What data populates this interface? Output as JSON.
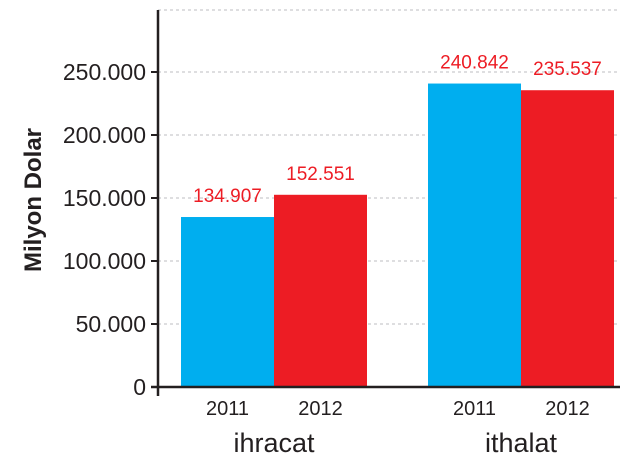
{
  "chart_data": {
    "type": "bar",
    "ylabel": "Milyon Dolar",
    "ylim": [
      0,
      250000
    ],
    "yticks": [
      0,
      50000,
      100000,
      150000,
      200000,
      250000
    ],
    "ytick_labels": [
      "0",
      "50.000",
      "100.000",
      "150.000",
      "200.000",
      "250.000"
    ],
    "grid": true,
    "groups": [
      {
        "name": "ihracat",
        "bars": [
          {
            "year": "2011",
            "value": 134907,
            "label": "134.907",
            "color": "#00aeef"
          },
          {
            "year": "2012",
            "value": 152551,
            "label": "152.551",
            "color": "#ed1c24"
          }
        ]
      },
      {
        "name": "ithalat",
        "bars": [
          {
            "year": "2011",
            "value": 240842,
            "label": "240.842",
            "color": "#00aeef"
          },
          {
            "year": "2012",
            "value": 235537,
            "label": "235.537",
            "color": "#ed1c24"
          }
        ]
      }
    ],
    "colors": {
      "2011": "#00aeef",
      "2012": "#ed1c24",
      "label_text": "#ed1c24",
      "axis": "#231f20",
      "grid": "#bcbec0"
    }
  }
}
